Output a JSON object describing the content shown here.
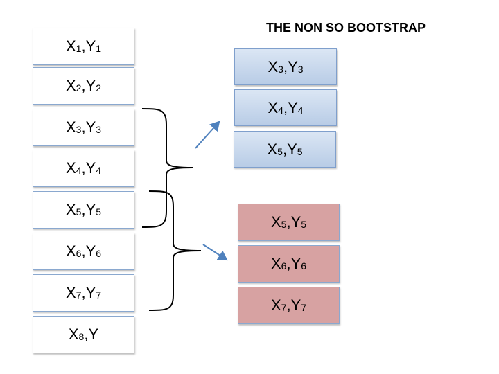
{
  "title": "THE NON SO BOOTSTRAP",
  "left_column": [
    {
      "x": "X",
      "xs": "1",
      "sep": ",",
      "y": "Y",
      "ys": "1"
    },
    {
      "x": "X",
      "xs": "2",
      "sep": ",",
      "y": "Y",
      "ys": "2"
    },
    {
      "x": "X",
      "xs": "3",
      "sep": ",",
      "y": "Y",
      "ys": "3"
    },
    {
      "x": "X",
      "xs": "4",
      "sep": ",",
      "y": "Y",
      "ys": "4"
    },
    {
      "x": "X",
      "xs": "5",
      "sep": ",",
      "y": "Y",
      "ys": "5"
    },
    {
      "x": "X",
      "xs": "6",
      "sep": ",",
      "y": "Y",
      "ys": "6"
    },
    {
      "x": "X",
      "xs": "7",
      "sep": ",",
      "y": "Y",
      "ys": "7"
    },
    {
      "x": "X",
      "xs": "8",
      "sep": ",",
      "y": "Y",
      "ys": ""
    }
  ],
  "sample_blue": [
    {
      "x": "X",
      "xs": "3",
      "sep": ",",
      "y": "Y",
      "ys": "3"
    },
    {
      "x": "X",
      "xs": "4",
      "sep": ",",
      "y": "Y",
      "ys": "4"
    },
    {
      "x": "X",
      "xs": "5",
      "sep": ",",
      "y": "Y",
      "ys": "5"
    }
  ],
  "sample_red": [
    {
      "x": "X",
      "xs": "5",
      "sep": ",",
      "y": "Y",
      "ys": "5"
    },
    {
      "x": "X",
      "xs": "6",
      "sep": ",",
      "y": "Y",
      "ys": "6"
    },
    {
      "x": "X",
      "xs": "7",
      "sep": ",",
      "y": "Y",
      "ys": "7"
    }
  ],
  "colors": {
    "blue_fill": "#b8cce6",
    "red_fill": "#d7a2a2",
    "border": "#8aa8cf",
    "arrow": "#4f81bd",
    "brace": "#000000"
  }
}
